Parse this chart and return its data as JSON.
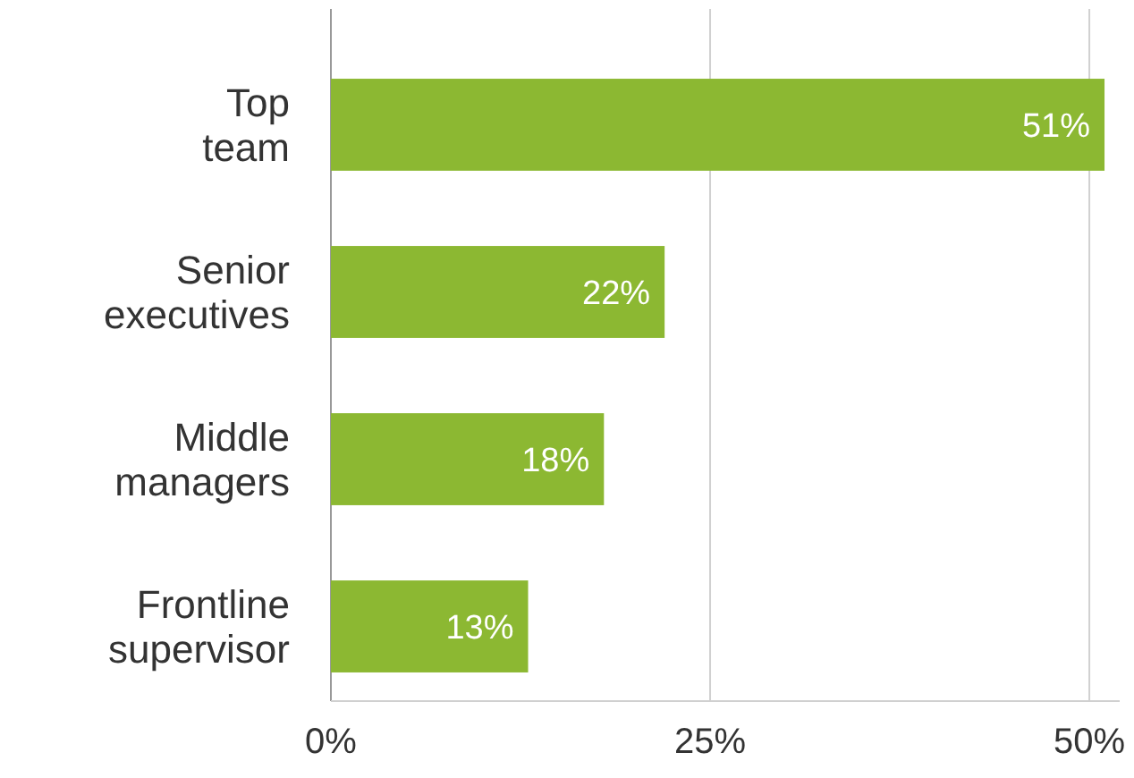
{
  "chart_data": {
    "type": "bar",
    "orientation": "horizontal",
    "categories": [
      "Top team",
      "Senior executives",
      "Middle managers",
      "Frontline supervisor"
    ],
    "values": [
      51,
      22,
      18,
      13
    ],
    "value_labels": [
      "51%",
      "22%",
      "18%",
      "13%"
    ],
    "color": "#8cb832",
    "xlim": [
      0,
      52
    ],
    "xticks": [
      {
        "value": 0,
        "label": "0%"
      },
      {
        "value": 25,
        "label": "25%"
      },
      {
        "value": 50,
        "label": "50%"
      }
    ],
    "grid": "x"
  }
}
